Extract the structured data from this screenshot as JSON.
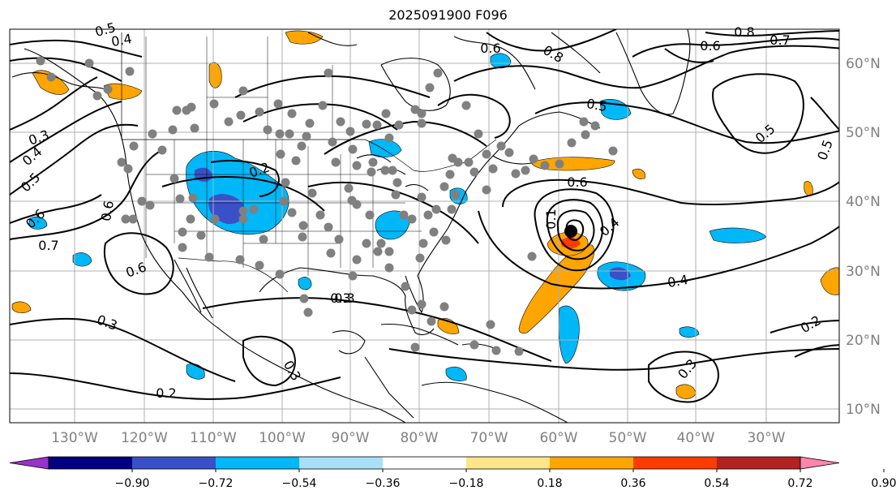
{
  "title": "2025091900 F096",
  "lat_labels": [
    "60°N",
    "50°N",
    "40°N",
    "30°N",
    "20°N",
    "10°N"
  ],
  "lon_labels": [
    "130°W",
    "120°W",
    "110°W",
    "100°W",
    "90°W",
    "80°W",
    "70°W",
    "60°W",
    "50°W",
    "40°W",
    "30°W"
  ],
  "colorbar": {
    "ticks": [
      "−0.90",
      "−0.72",
      "−0.54",
      "−0.36",
      "−0.18",
      "0.18",
      "0.36",
      "0.54",
      "0.72",
      "0.90"
    ],
    "colors": [
      "#9932cc",
      "#000080",
      "#3a50c8",
      "#00b8f8",
      "#a8e0fa",
      "#ffffff",
      "#fde68a",
      "#ffa500",
      "#ff3b00",
      "#b22222",
      "#ff85b0"
    ]
  },
  "contour_labels": [
    "0.5",
    "0.4",
    "0.3",
    "0.4",
    "0.5",
    "0.6",
    "0.7",
    "0.6",
    "0.6",
    "0.3",
    "0.3",
    "0.2",
    "0.3",
    "0.2",
    "0.3",
    "0.6",
    "0.4",
    "0.4",
    "0.5",
    "0.6",
    "0.7",
    "0.8",
    "0.8",
    "0.6",
    "0.5",
    "0.5",
    "0.3",
    "0.2",
    "0.1"
  ],
  "storm_marker": "tropical-cyclone-center"
}
